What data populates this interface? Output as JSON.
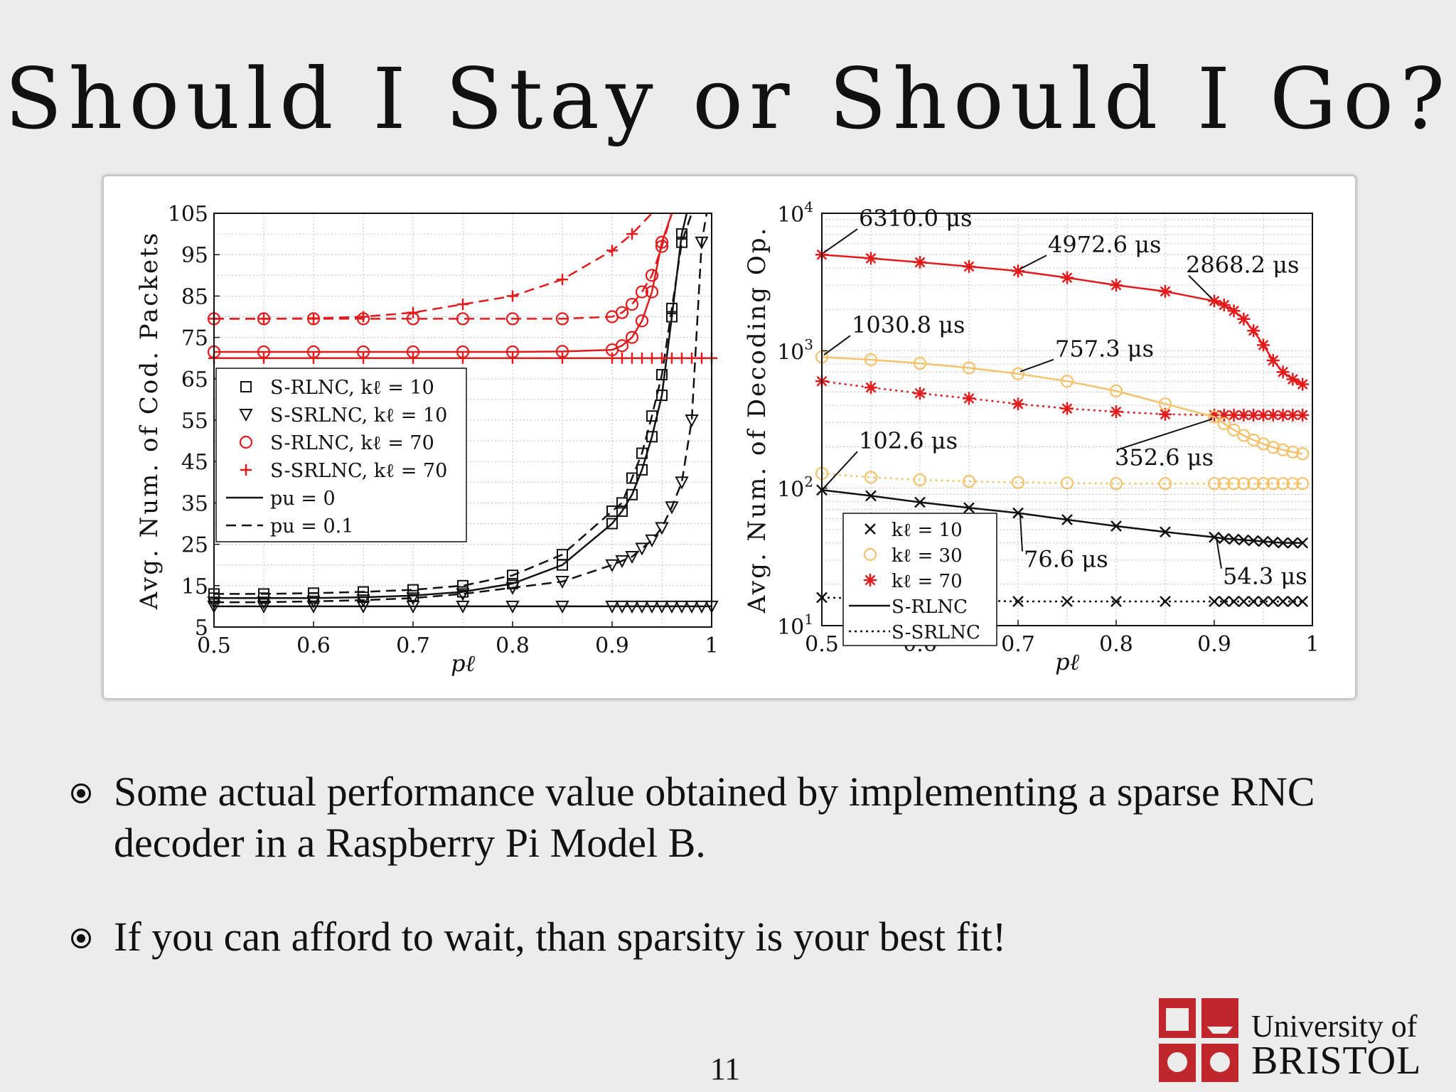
{
  "slide": {
    "title": "Should I Stay or Should I Go?",
    "bullets": [
      "Some actual performance value obtained by implementing a sparse RNC decoder in a Raspberry Pi Model B.",
      "If you can afford to wait, than sparsity is your best fit!"
    ],
    "page_number": "11",
    "logo": {
      "line1": "University of",
      "line2": "BRISTOL"
    }
  },
  "chart_data": [
    {
      "type": "line",
      "xlabel": "p_ℓ",
      "ylabel": "Avg. Num. of Cod. Packets",
      "xlim": [
        0.5,
        1
      ],
      "ylim": [
        5,
        105
      ],
      "xticks": [
        "0.5",
        "0.6",
        "0.7",
        "0.8",
        "0.9",
        "1"
      ],
      "yticks": [
        "5",
        "15",
        "25",
        "35",
        "45",
        "55",
        "65",
        "75",
        "85",
        "95",
        "105"
      ],
      "grid": true,
      "legend_placement": "center-left",
      "legend": [
        {
          "marker": "square",
          "label": "S-RLNC, k_ℓ = 10"
        },
        {
          "marker": "triangle-down",
          "label": "S-SRLNC, k_ℓ = 10"
        },
        {
          "marker": "circle",
          "label": "S-RLNC, k_ℓ = 70"
        },
        {
          "marker": "plus",
          "label": "S-SRLNC, k_ℓ = 70"
        },
        {
          "line": "solid",
          "label": "p_u = 0"
        },
        {
          "line": "dashed",
          "label": "p_u = 0.1"
        }
      ],
      "series": [
        {
          "color": "#111111",
          "marker": "square",
          "dash": "solid",
          "x": [
            0.5,
            0.55,
            0.6,
            0.65,
            0.7,
            0.75,
            0.8,
            0.85,
            0.9,
            0.91,
            0.92,
            0.93,
            0.94,
            0.95,
            0.96,
            0.97,
            0.975
          ],
          "y": [
            12,
            12,
            12,
            12.2,
            12.6,
            13.5,
            15.5,
            20,
            30,
            33,
            37,
            43,
            51,
            61,
            80,
            100,
            105
          ]
        },
        {
          "color": "#111111",
          "marker": "square",
          "dash": "dashed",
          "x": [
            0.5,
            0.55,
            0.6,
            0.65,
            0.7,
            0.75,
            0.8,
            0.85,
            0.9,
            0.91,
            0.92,
            0.93,
            0.94,
            0.95,
            0.96,
            0.97,
            0.98
          ],
          "y": [
            13,
            13,
            13.2,
            13.5,
            14,
            15,
            17.5,
            22.5,
            33,
            35,
            41,
            47,
            56,
            66,
            82,
            98,
            105
          ]
        },
        {
          "color": "#111111",
          "marker": "triangle-down",
          "dash": "solid",
          "x": [
            0.5,
            0.55,
            0.6,
            0.65,
            0.7,
            0.75,
            0.8,
            0.85,
            0.9,
            0.91,
            0.92,
            0.93,
            0.94,
            0.95,
            0.96,
            0.97,
            0.98,
            0.99,
            1.0
          ],
          "y": [
            10,
            10,
            10,
            10,
            10,
            10,
            10,
            10,
            10,
            10,
            10,
            10,
            10,
            10,
            10,
            10,
            10,
            10,
            10
          ]
        },
        {
          "color": "#111111",
          "marker": "triangle-down",
          "dash": "dashed",
          "x": [
            0.5,
            0.55,
            0.6,
            0.65,
            0.7,
            0.75,
            0.8,
            0.85,
            0.9,
            0.91,
            0.92,
            0.93,
            0.94,
            0.95,
            0.96,
            0.97,
            0.98,
            0.99,
            0.995
          ],
          "y": [
            11,
            11,
            11.2,
            11.5,
            12,
            13,
            14.5,
            16,
            20,
            21,
            22,
            24,
            26,
            29,
            34,
            40,
            55,
            98,
            105
          ]
        },
        {
          "color": "#e31a1c",
          "marker": "circle",
          "dash": "solid",
          "x": [
            0.5,
            0.55,
            0.6,
            0.65,
            0.7,
            0.75,
            0.8,
            0.85,
            0.9,
            0.91,
            0.92,
            0.93,
            0.94,
            0.95,
            0.96
          ],
          "y": [
            71.5,
            71.5,
            71.5,
            71.5,
            71.5,
            71.5,
            71.5,
            71.6,
            72,
            73,
            75,
            79,
            86,
            98,
            105
          ]
        },
        {
          "color": "#e31a1c",
          "marker": "circle",
          "dash": "dashed",
          "x": [
            0.5,
            0.55,
            0.6,
            0.65,
            0.7,
            0.75,
            0.8,
            0.85,
            0.9,
            0.91,
            0.92,
            0.93,
            0.94,
            0.95,
            0.96
          ],
          "y": [
            79.5,
            79.5,
            79.5,
            79.5,
            79.5,
            79.5,
            79.5,
            79.5,
            80,
            81,
            83,
            86,
            90,
            97,
            105
          ]
        },
        {
          "color": "#e31a1c",
          "marker": "plus",
          "dash": "solid",
          "x": [
            0.5,
            0.55,
            0.6,
            0.65,
            0.7,
            0.75,
            0.8,
            0.85,
            0.9,
            0.91,
            0.92,
            0.93,
            0.94,
            0.95,
            0.96,
            0.97,
            0.98,
            0.99,
            1.0
          ],
          "y": [
            70,
            70,
            70,
            70,
            70,
            70,
            70,
            70,
            70,
            70,
            70,
            70,
            70,
            70,
            70,
            70,
            70,
            70,
            70
          ]
        },
        {
          "color": "#e31a1c",
          "marker": "plus",
          "dash": "dashed",
          "x": [
            0.5,
            0.55,
            0.6,
            0.65,
            0.7,
            0.75,
            0.8,
            0.85,
            0.9,
            0.92,
            0.94
          ],
          "y": [
            79.5,
            79.5,
            79.6,
            80,
            81,
            83,
            85,
            89,
            96,
            100,
            105
          ]
        }
      ]
    },
    {
      "type": "line",
      "xlabel": "p_ℓ",
      "ylabel": "Avg. Num. of Decoding Op.",
      "yscale": "log",
      "xlim": [
        0.5,
        1
      ],
      "ylim": [
        10,
        10000
      ],
      "xticks": [
        "0.5",
        "0.6",
        "0.7",
        "0.8",
        "0.9",
        "1"
      ],
      "yticks": [
        "10^1",
        "10^2",
        "10^3",
        "10^4"
      ],
      "grid": true,
      "legend_placement": "bottom-left",
      "legend": [
        {
          "marker": "x",
          "color": "#111111",
          "label": "k_ℓ = 10"
        },
        {
          "marker": "circle",
          "color": "#f5c26b",
          "label": "k_ℓ = 30"
        },
        {
          "marker": "asterisk",
          "color": "#e31a1c",
          "label": "k_ℓ = 70"
        },
        {
          "line": "solid",
          "label": "S-RLNC"
        },
        {
          "line": "dotted",
          "label": "S-SRLNC"
        }
      ],
      "annotations": [
        {
          "text": "6310.0 μs",
          "x": 0.5,
          "y": 5000
        },
        {
          "text": "4972.6 μs",
          "x": 0.7,
          "y": 3800
        },
        {
          "text": "2868.2 μs",
          "x": 0.9,
          "y": 2300
        },
        {
          "text": "1030.8 μs",
          "x": 0.5,
          "y": 900
        },
        {
          "text": "757.3 μs",
          "x": 0.7,
          "y": 680
        },
        {
          "text": "352.6 μs",
          "x": 0.9,
          "y": 330
        },
        {
          "text": "102.6 μs",
          "x": 0.5,
          "y": 97
        },
        {
          "text": "76.6 μs",
          "x": 0.7,
          "y": 66
        },
        {
          "text": "54.3 μs",
          "x": 0.9,
          "y": 45
        }
      ],
      "series": [
        {
          "color": "#e31a1c",
          "marker": "asterisk",
          "dash": "solid",
          "x": [
            0.5,
            0.55,
            0.6,
            0.65,
            0.7,
            0.75,
            0.8,
            0.85,
            0.9,
            0.91,
            0.92,
            0.93,
            0.94,
            0.95,
            0.96,
            0.97,
            0.98,
            0.99
          ],
          "y": [
            5000,
            4700,
            4400,
            4100,
            3800,
            3400,
            3000,
            2700,
            2300,
            2150,
            1950,
            1700,
            1400,
            1100,
            850,
            700,
            620,
            570
          ]
        },
        {
          "color": "#e31a1c",
          "marker": "asterisk",
          "dash": "dotted",
          "x": [
            0.5,
            0.55,
            0.6,
            0.65,
            0.7,
            0.75,
            0.8,
            0.85,
            0.9,
            0.91,
            0.92,
            0.93,
            0.94,
            0.95,
            0.96,
            0.97,
            0.98,
            0.99
          ],
          "y": [
            600,
            540,
            490,
            450,
            410,
            380,
            360,
            345,
            340,
            340,
            340,
            340,
            340,
            340,
            340,
            340,
            340,
            340
          ]
        },
        {
          "color": "#f5c26b",
          "marker": "circle",
          "dash": "solid",
          "x": [
            0.5,
            0.55,
            0.6,
            0.65,
            0.7,
            0.75,
            0.8,
            0.85,
            0.9,
            0.91,
            0.92,
            0.93,
            0.94,
            0.95,
            0.96,
            0.97,
            0.98,
            0.99
          ],
          "y": [
            900,
            860,
            810,
            750,
            680,
            600,
            510,
            410,
            330,
            295,
            265,
            242,
            224,
            210,
            198,
            190,
            183,
            178
          ]
        },
        {
          "color": "#f5c26b",
          "marker": "circle",
          "dash": "dotted",
          "x": [
            0.5,
            0.55,
            0.6,
            0.65,
            0.7,
            0.75,
            0.8,
            0.85,
            0.9,
            0.91,
            0.92,
            0.93,
            0.94,
            0.95,
            0.96,
            0.97,
            0.98,
            0.99
          ],
          "y": [
            128,
            120,
            115,
            112,
            110,
            109,
            108,
            108,
            108,
            108,
            108,
            108,
            108,
            108,
            108,
            108,
            108,
            108
          ]
        },
        {
          "color": "#111111",
          "marker": "x",
          "dash": "solid",
          "x": [
            0.5,
            0.55,
            0.6,
            0.65,
            0.7,
            0.75,
            0.8,
            0.85,
            0.9,
            0.91,
            0.92,
            0.93,
            0.94,
            0.95,
            0.96,
            0.97,
            0.98,
            0.99
          ],
          "y": [
            97,
            88,
            79,
            72,
            66,
            59,
            53,
            48,
            44,
            43,
            42.5,
            42,
            41.5,
            41,
            40.5,
            40,
            40,
            40
          ]
        },
        {
          "color": "#111111",
          "marker": "x",
          "dash": "dotted",
          "x": [
            0.5,
            0.6,
            0.7,
            0.75,
            0.8,
            0.85,
            0.9,
            0.91,
            0.92,
            0.93,
            0.94,
            0.95,
            0.96,
            0.97,
            0.98,
            0.99
          ],
          "y": [
            16,
            15.5,
            15,
            15,
            15,
            15,
            15,
            15,
            15,
            15,
            15,
            15,
            15,
            15,
            15,
            15
          ]
        }
      ]
    }
  ]
}
